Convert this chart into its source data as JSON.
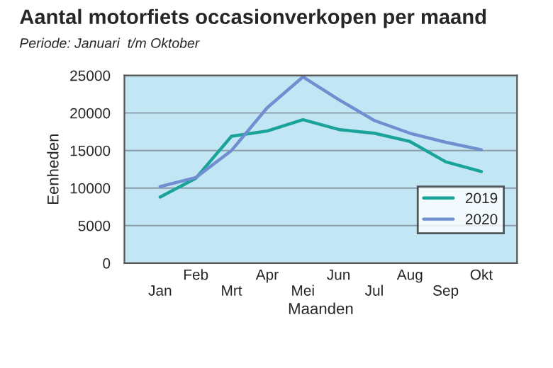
{
  "chart_data": {
    "type": "line",
    "title": "Aantal motorfiets occasionverkopen per maand",
    "subtitle": "Periode: Januari  t/m Oktober",
    "xlabel": "Maanden",
    "ylabel": "Eenheden",
    "categories": [
      "Jan",
      "Feb",
      "Mrt",
      "Apr",
      "Mei",
      "Jun",
      "Jul",
      "Aug",
      "Sep",
      "Okt"
    ],
    "series": [
      {
        "name": "2019",
        "color": "#1aa398",
        "values": [
          8800,
          11300,
          16900,
          17600,
          19100,
          17800,
          17300,
          16200,
          13500,
          12200
        ]
      },
      {
        "name": "2020",
        "color": "#6f8fd0",
        "values": [
          10200,
          11400,
          15000,
          20700,
          24800,
          21800,
          19000,
          17300,
          16100,
          15100
        ]
      }
    ],
    "ylim": [
      0,
      25000
    ],
    "yticks": [
      0,
      5000,
      10000,
      15000,
      20000,
      25000
    ],
    "grid": "y",
    "legend": "bottom right",
    "marker": "none",
    "line_style": "solid"
  }
}
